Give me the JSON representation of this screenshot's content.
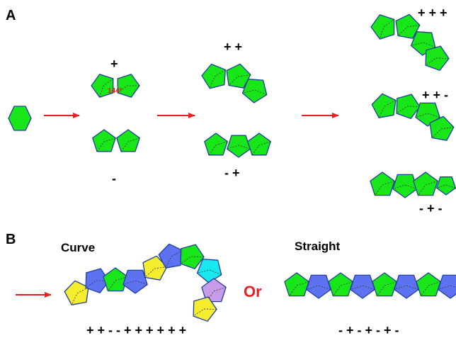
{
  "colors": {
    "green": "#19e619",
    "blue": "#5c72f0",
    "yellow": "#f5ee2e",
    "cyan": "#19e8f0",
    "purple": "#c79be8",
    "edge": "#1f3fa0",
    "arrow": "#e82020",
    "or_text": "#e82020",
    "angle_text": "#e02020"
  },
  "panel_a": {
    "label": "A",
    "angle_label": "144°",
    "signs": {
      "pair_plus": "+",
      "pair_minus": "-",
      "triple_plus_plus": "+ +",
      "triple_minus_plus": "- +",
      "quad_top": "+ + +",
      "quad_mid": "+ + -",
      "quad_bottom": "- + -"
    }
  },
  "panel_b": {
    "label": "B",
    "curve_title": "Curve",
    "straight_title": "Straight",
    "or_text": "Or",
    "curve_sequence": "+ + - - + + + + + +",
    "straight_sequence": "- + - + - + -",
    "curve_colors": [
      "yellow",
      "blue",
      "green",
      "blue",
      "yellow",
      "blue",
      "green",
      "cyan",
      "purple",
      "yellow"
    ],
    "straight_colors": [
      "green",
      "blue",
      "green",
      "blue",
      "green",
      "blue",
      "green",
      "blue"
    ]
  }
}
